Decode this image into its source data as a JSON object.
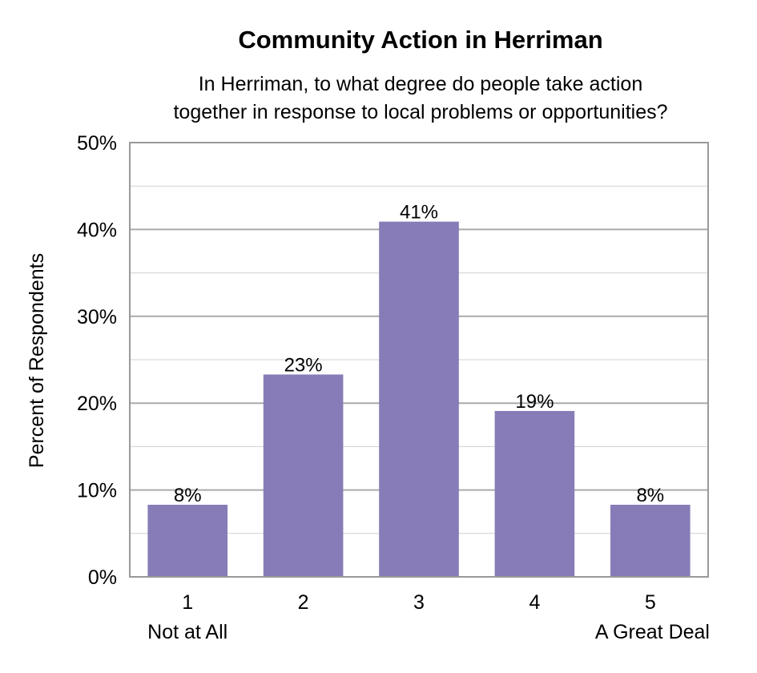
{
  "chart_data": {
    "type": "bar",
    "title": "Community Action in Herriman",
    "subtitle_lines": [
      "In Herriman, to what degree do people take action",
      "together in response to local problems or opportunities?"
    ],
    "xlabel": "",
    "ylabel": "Percent of Respondents",
    "categories": [
      "1",
      "2",
      "3",
      "4",
      "5"
    ],
    "category_sublabels": [
      "Not at All",
      "",
      "",
      "",
      "A Great Deal"
    ],
    "values": [
      8.3,
      23.3,
      40.9,
      19.1,
      8.3
    ],
    "data_labels": [
      "8%",
      "23%",
      "41%",
      "19%",
      "8%"
    ],
    "ylim": [
      0,
      50
    ],
    "yticks": [
      0,
      10,
      20,
      30,
      40,
      50
    ],
    "ytick_labels": [
      "0%",
      "10%",
      "20%",
      "30%",
      "40%",
      "50%"
    ],
    "grid": true,
    "colors": {
      "bar": "#877cb7",
      "major_grid": "#aaaaaa",
      "minor_grid": "#d0d0d0",
      "axis": "#999999"
    }
  }
}
